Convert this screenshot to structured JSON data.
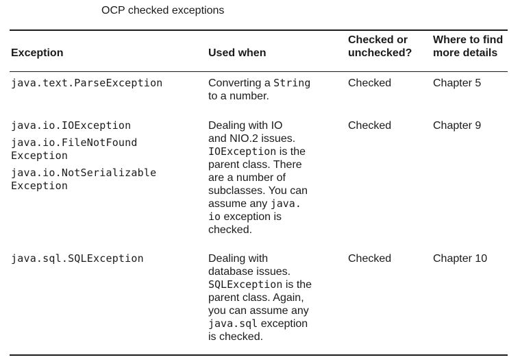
{
  "caption": "OCP checked exceptions",
  "table": {
    "headers": {
      "exception": "Exception",
      "used_when": "Used when",
      "checked_line1": "Checked or",
      "checked_line2": "unchecked?",
      "details_line1": "Where to find",
      "details_line2": "more details"
    },
    "rows": [
      {
        "exceptions": [
          "java.text.ParseException"
        ],
        "used_when": {
          "pre": "Converting a ",
          "code1": "String",
          "mid": "",
          "post": "to a number."
        },
        "checked": "Checked",
        "details": "Chapter 5"
      },
      {
        "exceptions": [
          "java.io.IOException",
          "java.io.FileNotFound",
          "Exception",
          "java.io.NotSerializable",
          "Exception"
        ],
        "used_when": {
          "l1": "Dealing with IO",
          "l2": "and NIO.2 issues.",
          "l3_code": "IOException",
          "l3_text": " is the",
          "l4": "parent class. There",
          "l5": "are a number of",
          "l6": "subclasses. You can",
          "l7_text": "assume any ",
          "l7_code": "java.",
          "l8_code": "io",
          "l8_text": " exception is",
          "l9": "checked."
        },
        "checked": "Checked",
        "details": "Chapter 9"
      },
      {
        "exceptions": [
          "java.sql.SQLException"
        ],
        "used_when": {
          "l1": "Dealing with",
          "l2": "database issues.",
          "l3_code": "SQLException",
          "l3_text": " is the",
          "l4": "parent class. Again,",
          "l5": "you can assume any",
          "l6_code": "java.sql",
          "l6_text": " exception",
          "l7": "is checked."
        },
        "checked": "Checked",
        "details": "Chapter 10"
      }
    ]
  }
}
